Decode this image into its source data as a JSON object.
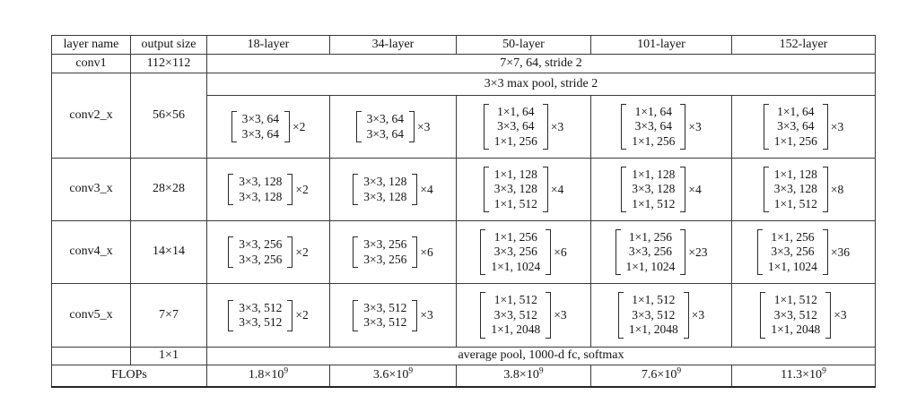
{
  "table": {
    "header": {
      "layer_name": "layer name",
      "output_size": "output size",
      "col_18": "18-layer",
      "col_34": "34-layer",
      "col_50": "50-layer",
      "col_101": "101-layer",
      "col_152": "152-layer"
    },
    "conv1_row": {
      "name": "conv1",
      "output": "112×112",
      "content": "7×7, 64, stride 2"
    },
    "conv2_pre": "3×3 max pool, stride 2",
    "stages": [
      {
        "name": "conv2_x",
        "output": "56×56",
        "blocks": [
          {
            "lines": [
              "3×3, 64",
              "3×3, 64"
            ],
            "mult": "×2"
          },
          {
            "lines": [
              "3×3, 64",
              "3×3, 64"
            ],
            "mult": "×3"
          },
          {
            "lines": [
              "1×1, 64",
              "3×3, 64",
              "1×1, 256"
            ],
            "mult": "×3"
          },
          {
            "lines": [
              "1×1, 64",
              "3×3, 64",
              "1×1, 256"
            ],
            "mult": "×3"
          },
          {
            "lines": [
              "1×1, 64",
              "3×3, 64",
              "1×1, 256"
            ],
            "mult": "×3"
          }
        ]
      },
      {
        "name": "conv3_x",
        "output": "28×28",
        "blocks": [
          {
            "lines": [
              "3×3, 128",
              "3×3, 128"
            ],
            "mult": "×2"
          },
          {
            "lines": [
              "3×3, 128",
              "3×3, 128"
            ],
            "mult": "×4"
          },
          {
            "lines": [
              "1×1, 128",
              "3×3, 128",
              "1×1, 512"
            ],
            "mult": "×4"
          },
          {
            "lines": [
              "1×1, 128",
              "3×3, 128",
              "1×1, 512"
            ],
            "mult": "×4"
          },
          {
            "lines": [
              "1×1, 128",
              "3×3, 128",
              "1×1, 512"
            ],
            "mult": "×8"
          }
        ]
      },
      {
        "name": "conv4_x",
        "output": "14×14",
        "blocks": [
          {
            "lines": [
              "3×3, 256",
              "3×3, 256"
            ],
            "mult": "×2"
          },
          {
            "lines": [
              "3×3, 256",
              "3×3, 256"
            ],
            "mult": "×6"
          },
          {
            "lines": [
              "1×1, 256",
              "3×3, 256",
              "1×1, 1024"
            ],
            "mult": "×6"
          },
          {
            "lines": [
              "1×1, 256",
              "3×3, 256",
              "1×1, 1024"
            ],
            "mult": "×23"
          },
          {
            "lines": [
              "1×1, 256",
              "3×3, 256",
              "1×1, 1024"
            ],
            "mult": "×36"
          }
        ]
      },
      {
        "name": "conv5_x",
        "output": "7×7",
        "blocks": [
          {
            "lines": [
              "3×3, 512",
              "3×3, 512"
            ],
            "mult": "×2"
          },
          {
            "lines": [
              "3×3, 512",
              "3×3, 512"
            ],
            "mult": "×3"
          },
          {
            "lines": [
              "1×1, 512",
              "3×3, 512",
              "1×1, 2048"
            ],
            "mult": "×3"
          },
          {
            "lines": [
              "1×1, 512",
              "3×3, 512",
              "1×1, 2048"
            ],
            "mult": "×3"
          },
          {
            "lines": [
              "1×1, 512",
              "3×3, 512",
              "1×1, 2048"
            ],
            "mult": "×3"
          }
        ]
      }
    ],
    "avgpool_row": {
      "output": "1×1",
      "content": "average pool, 1000-d fc, softmax"
    },
    "flops_row": {
      "label": "FLOPs",
      "values": [
        {
          "base": "1.8×10",
          "exp": "9"
        },
        {
          "base": "3.6×10",
          "exp": "9"
        },
        {
          "base": "3.8×10",
          "exp": "9"
        },
        {
          "base": "7.6×10",
          "exp": "9"
        },
        {
          "base": "11.3×10",
          "exp": "9"
        }
      ]
    },
    "colors": {
      "border": "#3a3a3a",
      "text": "#141414",
      "background": "#ffffff"
    }
  }
}
